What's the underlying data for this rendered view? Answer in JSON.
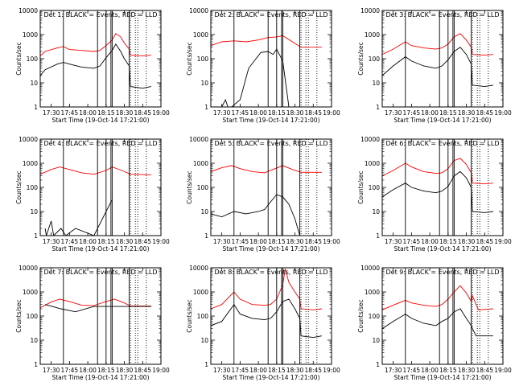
{
  "chart_data": [
    {
      "type": "line",
      "title": "Det 1: BLACK = Events, RED = LLD",
      "ylabel": "Counts/sec",
      "xlabel": "Start Time (19-Oct-14 17:21:00)",
      "yscale": "log",
      "ylim": [
        1,
        10000
      ],
      "xlim": [
        "17:21",
        "19:00"
      ],
      "xticks": [
        "17:30",
        "17:45",
        "18:00",
        "18:15",
        "18:30",
        "18:45",
        "19:00"
      ],
      "yticks": [
        "1",
        "10",
        "100",
        "1000",
        "10000"
      ],
      "grid": false,
      "vlines_solid": [
        "17:40",
        "18:08",
        "18:15",
        "18:19",
        "18:20",
        "18:34"
      ],
      "vlines_dotted": [
        "18:35",
        "18:39",
        "18:41",
        "18:48"
      ],
      "series": [
        {
          "name": "LLD",
          "color": "#ff0000",
          "x": [
            "17:21",
            "17:25",
            "17:35",
            "17:40",
            "17:45",
            "17:55",
            "18:05",
            "18:10",
            "18:15",
            "18:20",
            "18:23",
            "18:27",
            "18:30",
            "18:34",
            "18:35",
            "18:45",
            "18:52"
          ],
          "y": [
            130,
            200,
            280,
            320,
            240,
            220,
            200,
            220,
            350,
            600,
            1100,
            800,
            450,
            250,
            140,
            130,
            140
          ]
        },
        {
          "name": "Events",
          "color": "#000000",
          "x": [
            "17:21",
            "17:25",
            "17:35",
            "17:40",
            "17:45",
            "17:55",
            "18:05",
            "18:10",
            "18:15",
            "18:20",
            "18:23",
            "18:27",
            "18:30",
            "18:34",
            "18:35",
            "18:45",
            "18:52"
          ],
          "y": [
            20,
            35,
            60,
            70,
            60,
            45,
            40,
            50,
            110,
            220,
            400,
            200,
            100,
            50,
            7,
            6,
            7
          ]
        }
      ]
    },
    {
      "type": "line",
      "title": "Det 2: BLACK = Events, RED = LLD",
      "ylabel": "Counts/sec",
      "xlabel": "Start Time (19-Oct-14 17:21:00)",
      "yscale": "log",
      "ylim": [
        1,
        10000
      ],
      "xlim": [
        "17:21",
        "19:00"
      ],
      "xticks": [
        "17:30",
        "17:45",
        "18:00",
        "18:15",
        "18:30",
        "18:45",
        "19:00"
      ],
      "yticks": [
        "1",
        "10",
        "100",
        "1000",
        "10000"
      ],
      "grid": false,
      "vlines_solid": [
        "17:40",
        "18:08",
        "18:15",
        "18:19",
        "18:20",
        "18:34"
      ],
      "vlines_dotted": [
        "18:35",
        "18:39",
        "18:41",
        "18:48"
      ],
      "series": [
        {
          "name": "LLD",
          "color": "#ff0000",
          "x": [
            "17:21",
            "17:30",
            "17:40",
            "17:50",
            "18:00",
            "18:08",
            "18:15",
            "18:20",
            "18:28",
            "18:35",
            "18:52"
          ],
          "y": [
            350,
            500,
            550,
            500,
            600,
            750,
            800,
            900,
            500,
            300,
            300
          ]
        },
        {
          "name": "Events",
          "color": "#000000",
          "x": [
            "17:30",
            "17:33",
            "17:35",
            "17:38",
            "17:45",
            "17:52",
            "17:58",
            "18:02",
            "18:08",
            "18:12",
            "18:15",
            "18:20",
            "18:25"
          ],
          "y": [
            1,
            2,
            1,
            1,
            2,
            40,
            100,
            180,
            200,
            150,
            250,
            80,
            1
          ]
        }
      ]
    },
    {
      "type": "line",
      "title": "Det 3: BLACK = Events, RED = LLD",
      "ylabel": "Counts/sec",
      "xlabel": "Start Time (19-Oct-14 17:21:00)",
      "yscale": "log",
      "ylim": [
        1,
        10000
      ],
      "xlim": [
        "17:21",
        "19:00"
      ],
      "xticks": [
        "17:30",
        "17:45",
        "18:00",
        "18:15",
        "18:30",
        "18:45",
        "19:00"
      ],
      "yticks": [
        "1",
        "10",
        "100",
        "1000",
        "10000"
      ],
      "grid": false,
      "vlines_solid": [
        "17:40",
        "18:08",
        "18:15",
        "18:19",
        "18:20",
        "18:34"
      ],
      "vlines_dotted": [
        "18:35",
        "18:39",
        "18:41",
        "18:48"
      ],
      "series": [
        {
          "name": "LLD",
          "color": "#ff0000",
          "x": [
            "17:21",
            "17:30",
            "17:40",
            "17:45",
            "17:55",
            "18:05",
            "18:10",
            "18:15",
            "18:20",
            "18:25",
            "18:30",
            "18:34",
            "18:35",
            "18:45",
            "18:52"
          ],
          "y": [
            150,
            250,
            500,
            350,
            280,
            250,
            280,
            400,
            800,
            1100,
            600,
            300,
            150,
            140,
            150
          ]
        },
        {
          "name": "Events",
          "color": "#000000",
          "x": [
            "17:21",
            "17:30",
            "17:40",
            "17:45",
            "17:55",
            "18:05",
            "18:10",
            "18:15",
            "18:20",
            "18:25",
            "18:30",
            "18:34",
            "18:35",
            "18:45",
            "18:52"
          ],
          "y": [
            20,
            50,
            120,
            80,
            50,
            40,
            50,
            90,
            200,
            300,
            150,
            60,
            8,
            7,
            8
          ]
        }
      ]
    },
    {
      "type": "line",
      "title": "Det 4: BLACK = Events, RED = LLD",
      "ylabel": "Counts/sec",
      "xlabel": "Start Time (19-Oct-14 17:21:00)",
      "yscale": "log",
      "ylim": [
        1,
        10000
      ],
      "xlim": [
        "17:21",
        "19:00"
      ],
      "xticks": [
        "17:30",
        "17:45",
        "18:00",
        "18:15",
        "18:30",
        "18:45",
        "19:00"
      ],
      "yticks": [
        "1",
        "10",
        "100",
        "1000",
        "10000"
      ],
      "grid": false,
      "vlines_solid": [
        "17:40",
        "18:08",
        "18:15",
        "18:19",
        "18:20",
        "18:34"
      ],
      "vlines_dotted": [
        "18:35",
        "18:39",
        "18:41",
        "18:48"
      ],
      "series": [
        {
          "name": "LLD",
          "color": "#ff0000",
          "x": [
            "17:21",
            "17:30",
            "17:37",
            "17:45",
            "17:55",
            "18:05",
            "18:15",
            "18:20",
            "18:28",
            "18:35",
            "18:52"
          ],
          "y": [
            350,
            550,
            700,
            550,
            400,
            350,
            500,
            700,
            500,
            350,
            330
          ]
        },
        {
          "name": "Events",
          "color": "#000000",
          "x": [
            "17:25",
            "17:26",
            "17:30",
            "17:32",
            "17:38",
            "17:42",
            "17:50",
            "18:05",
            "18:18",
            "18:20"
          ],
          "y": [
            2,
            1,
            4,
            1,
            2,
            1,
            2,
            1,
            20,
            30
          ]
        }
      ]
    },
    {
      "type": "line",
      "title": "Det 5: BLACK = Events, RED = LLD",
      "ylabel": "Counts/sec",
      "xlabel": "Start Time (19-Oct-14 17:21:00)",
      "yscale": "log",
      "ylim": [
        1,
        10000
      ],
      "xlim": [
        "17:21",
        "19:00"
      ],
      "xticks": [
        "17:30",
        "17:45",
        "18:00",
        "18:15",
        "18:30",
        "18:45",
        "19:00"
      ],
      "yticks": [
        "1",
        "10",
        "100",
        "1000",
        "10000"
      ],
      "grid": false,
      "vlines_solid": [
        "17:40",
        "18:08",
        "18:15",
        "18:19",
        "18:20",
        "18:34"
      ],
      "vlines_dotted": [
        "18:35",
        "18:39",
        "18:41",
        "18:48"
      ],
      "series": [
        {
          "name": "LLD",
          "color": "#ff0000",
          "x": [
            "17:21",
            "17:30",
            "17:38",
            "17:45",
            "17:55",
            "18:05",
            "18:12",
            "18:20",
            "18:28",
            "18:35",
            "18:52"
          ],
          "y": [
            450,
            650,
            800,
            600,
            450,
            400,
            550,
            800,
            550,
            420,
            420
          ]
        },
        {
          "name": "Events",
          "color": "#000000",
          "x": [
            "17:21",
            "17:30",
            "17:40",
            "17:50",
            "18:00",
            "18:05",
            "18:10",
            "18:15",
            "18:20",
            "18:25",
            "18:30",
            "18:34"
          ],
          "y": [
            8,
            6,
            10,
            8,
            10,
            12,
            25,
            50,
            40,
            20,
            5,
            1
          ]
        }
      ]
    },
    {
      "type": "line",
      "title": "Det 6: BLACK = Events, RED = LLD",
      "ylabel": "Counts/sec",
      "xlabel": "Start Time (19-Oct-14 17:21:00)",
      "yscale": "log",
      "ylim": [
        1,
        10000
      ],
      "xlim": [
        "17:21",
        "19:00"
      ],
      "xticks": [
        "17:30",
        "17:45",
        "18:00",
        "18:15",
        "18:30",
        "18:45",
        "19:00"
      ],
      "yticks": [
        "1",
        "10",
        "100",
        "1000",
        "10000"
      ],
      "grid": false,
      "vlines_solid": [
        "17:40",
        "18:08",
        "18:15",
        "18:19",
        "18:20",
        "18:34"
      ],
      "vlines_dotted": [
        "18:35",
        "18:39",
        "18:41",
        "18:48"
      ],
      "series": [
        {
          "name": "LLD",
          "color": "#ff0000",
          "x": [
            "17:21",
            "17:30",
            "17:40",
            "17:45",
            "17:55",
            "18:05",
            "18:10",
            "18:15",
            "18:20",
            "18:25",
            "18:30",
            "18:34",
            "18:35",
            "18:45",
            "18:52"
          ],
          "y": [
            300,
            500,
            1000,
            700,
            450,
            380,
            400,
            600,
            1300,
            1600,
            900,
            400,
            150,
            140,
            150
          ]
        },
        {
          "name": "Events",
          "color": "#000000",
          "x": [
            "17:21",
            "17:30",
            "17:40",
            "17:45",
            "17:55",
            "18:05",
            "18:10",
            "18:15",
            "18:20",
            "18:25",
            "18:30",
            "18:34",
            "18:35",
            "18:45",
            "18:52"
          ],
          "y": [
            40,
            80,
            150,
            100,
            70,
            60,
            70,
            110,
            300,
            450,
            250,
            100,
            10,
            9,
            10
          ]
        }
      ]
    },
    {
      "type": "line",
      "title": "Det 7: BLACK = Events, RED = LLD",
      "ylabel": "Counts/sec",
      "xlabel": "Start Time (19-Oct-14 17:21:00)",
      "yscale": "log",
      "ylim": [
        1,
        10000
      ],
      "xlim": [
        "17:21",
        "19:00"
      ],
      "xticks": [
        "17:30",
        "17:45",
        "18:00",
        "18:15",
        "18:30",
        "18:45",
        "19:00"
      ],
      "yticks": [
        "1",
        "10",
        "100",
        "1000",
        "10000"
      ],
      "grid": false,
      "vlines_solid": [
        "17:40",
        "18:08",
        "18:15",
        "18:19",
        "18:20",
        "18:34"
      ],
      "vlines_dotted": [
        "18:35",
        "18:39",
        "18:41",
        "18:48"
      ],
      "series": [
        {
          "name": "LLD",
          "color": "#ff0000",
          "x": [
            "17:21",
            "17:30",
            "17:37",
            "17:45",
            "17:55",
            "18:05",
            "18:15",
            "18:22",
            "18:30",
            "18:35",
            "18:52"
          ],
          "y": [
            220,
            380,
            500,
            400,
            280,
            270,
            400,
            500,
            350,
            260,
            260
          ]
        },
        {
          "name": "Events",
          "color": "#000000",
          "x": [
            "17:25",
            "17:38",
            "17:50",
            "18:05",
            "18:52"
          ],
          "y": [
            300,
            200,
            150,
            250,
            250
          ]
        }
      ]
    },
    {
      "type": "line",
      "title": "Det 8: BLACK = Events, RED = LLD",
      "ylabel": "Counts/sec",
      "xlabel": "Start Time (19-Oct-14 17:21:00)",
      "yscale": "log",
      "ylim": [
        1,
        10000
      ],
      "xlim": [
        "17:21",
        "19:00"
      ],
      "xticks": [
        "17:30",
        "17:45",
        "18:00",
        "18:15",
        "18:30",
        "18:45",
        "19:00"
      ],
      "yticks": [
        "1",
        "10",
        "100",
        "1000",
        "10000"
      ],
      "grid": false,
      "vlines_solid": [
        "17:40",
        "18:08",
        "18:15",
        "18:19",
        "18:20",
        "18:34"
      ],
      "vlines_dotted": [
        "18:35",
        "18:39",
        "18:41",
        "18:48"
      ],
      "series": [
        {
          "name": "LLD",
          "color": "#ff0000",
          "x": [
            "17:21",
            "17:30",
            "17:40",
            "17:45",
            "17:55",
            "18:05",
            "18:10",
            "18:15",
            "18:20",
            "18:22",
            "18:25",
            "18:30",
            "18:34",
            "18:35",
            "18:45",
            "18:52"
          ],
          "y": [
            200,
            300,
            1000,
            500,
            300,
            280,
            300,
            500,
            2000,
            9000,
            2500,
            1000,
            500,
            200,
            180,
            200
          ]
        },
        {
          "name": "Events",
          "color": "#000000",
          "x": [
            "17:21",
            "17:30",
            "17:40",
            "17:45",
            "17:55",
            "18:05",
            "18:10",
            "18:15",
            "18:20",
            "18:25",
            "18:30",
            "18:34",
            "18:35",
            "18:45",
            "18:52"
          ],
          "y": [
            40,
            60,
            300,
            120,
            80,
            70,
            80,
            150,
            400,
            500,
            200,
            80,
            15,
            13,
            15
          ]
        }
      ]
    },
    {
      "type": "line",
      "title": "Det 9: BLACK = Events, RED = LLD",
      "ylabel": "Counts/sec",
      "xlabel": "Start Time (19-Oct-14 17:21:00)",
      "yscale": "log",
      "ylim": [
        1,
        10000
      ],
      "xlim": [
        "17:21",
        "19:00"
      ],
      "xticks": [
        "17:30",
        "17:45",
        "18:00",
        "18:15",
        "18:30",
        "18:45",
        "19:00"
      ],
      "yticks": [
        "1",
        "10",
        "100",
        "1000",
        "10000"
      ],
      "grid": false,
      "vlines_solid": [
        "17:40",
        "18:08",
        "18:15",
        "18:19",
        "18:20",
        "18:34"
      ],
      "vlines_dotted": [
        "18:35",
        "18:39",
        "18:41",
        "18:48"
      ],
      "series": [
        {
          "name": "LLD",
          "color": "#ff0000",
          "x": [
            "17:21",
            "17:30",
            "17:40",
            "17:45",
            "17:55",
            "18:05",
            "18:10",
            "18:15",
            "18:20",
            "18:25",
            "18:30",
            "18:34",
            "18:35",
            "18:38",
            "18:40",
            "18:52"
          ],
          "y": [
            180,
            280,
            450,
            350,
            280,
            250,
            300,
            500,
            1000,
            1800,
            900,
            400,
            700,
            300,
            180,
            200
          ]
        },
        {
          "name": "Events",
          "color": "#000000",
          "x": [
            "17:21",
            "17:30",
            "17:40",
            "17:45",
            "17:55",
            "18:05",
            "18:10",
            "18:15",
            "18:20",
            "18:25",
            "18:30",
            "18:34",
            "18:35",
            "18:38",
            "18:40",
            "18:52"
          ],
          "y": [
            30,
            60,
            120,
            80,
            50,
            40,
            60,
            80,
            150,
            200,
            80,
            40,
            30,
            15,
            15,
            15
          ]
        }
      ]
    }
  ]
}
